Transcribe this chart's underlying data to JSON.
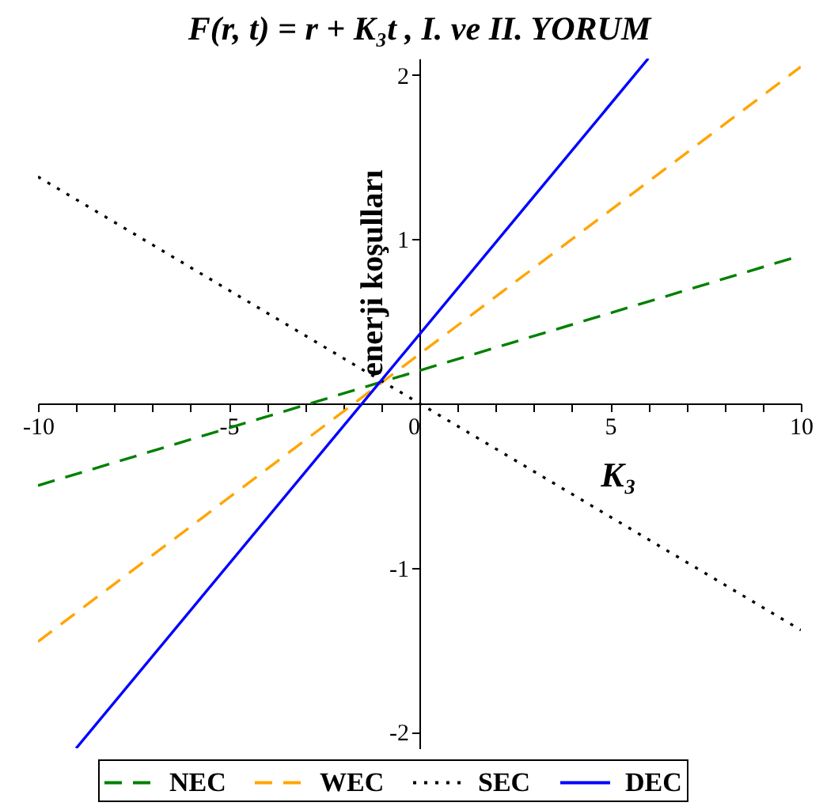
{
  "chart_data": {
    "type": "line",
    "title": "F(r, t) = r + K₃t , I. ve II. YORUM",
    "xlabel": "K₃",
    "ylabel": "enerji koşulları",
    "xlim": [
      -10,
      10
    ],
    "ylim": [
      -2.1,
      2.1
    ],
    "xticks": [
      -10,
      {
        "value": -9,
        "label": null
      },
      {
        "value": -8,
        "label": null
      },
      {
        "value": -7,
        "label": null
      },
      {
        "value": -6,
        "label": null
      },
      -5,
      {
        "value": -4,
        "label": null
      },
      {
        "value": -3,
        "label": null
      },
      {
        "value": -2,
        "label": null
      },
      {
        "value": -1,
        "label": null
      },
      0,
      {
        "value": 1,
        "label": null
      },
      {
        "value": 2,
        "label": null
      },
      {
        "value": 3,
        "label": null
      },
      {
        "value": 4,
        "label": null
      },
      5,
      {
        "value": 6,
        "label": null
      },
      {
        "value": 7,
        "label": null
      },
      {
        "value": 8,
        "label": null
      },
      {
        "value": 9,
        "label": null
      },
      10
    ],
    "yticks": [
      -2,
      -1,
      1,
      2
    ],
    "grid": false,
    "legend": "bottom",
    "series": [
      {
        "name": "NEC",
        "color": "#008000",
        "line_style": "dashed",
        "x": [
          -10,
          10
        ],
        "values": [
          -0.5,
          0.9
        ]
      },
      {
        "name": "WEC",
        "color": "#ffa500",
        "line_style": "dashed",
        "x": [
          -10,
          10
        ],
        "values": [
          -1.45,
          2.05
        ]
      },
      {
        "name": "SEC",
        "color": "#000000",
        "line_style": "dotted",
        "x": [
          -10,
          10
        ],
        "values": [
          1.38,
          -1.38
        ]
      },
      {
        "name": "DEC",
        "color": "#0000ff",
        "line_style": "solid",
        "x": [
          -9,
          6
        ],
        "values": [
          -2.1,
          2.1
        ]
      }
    ]
  }
}
